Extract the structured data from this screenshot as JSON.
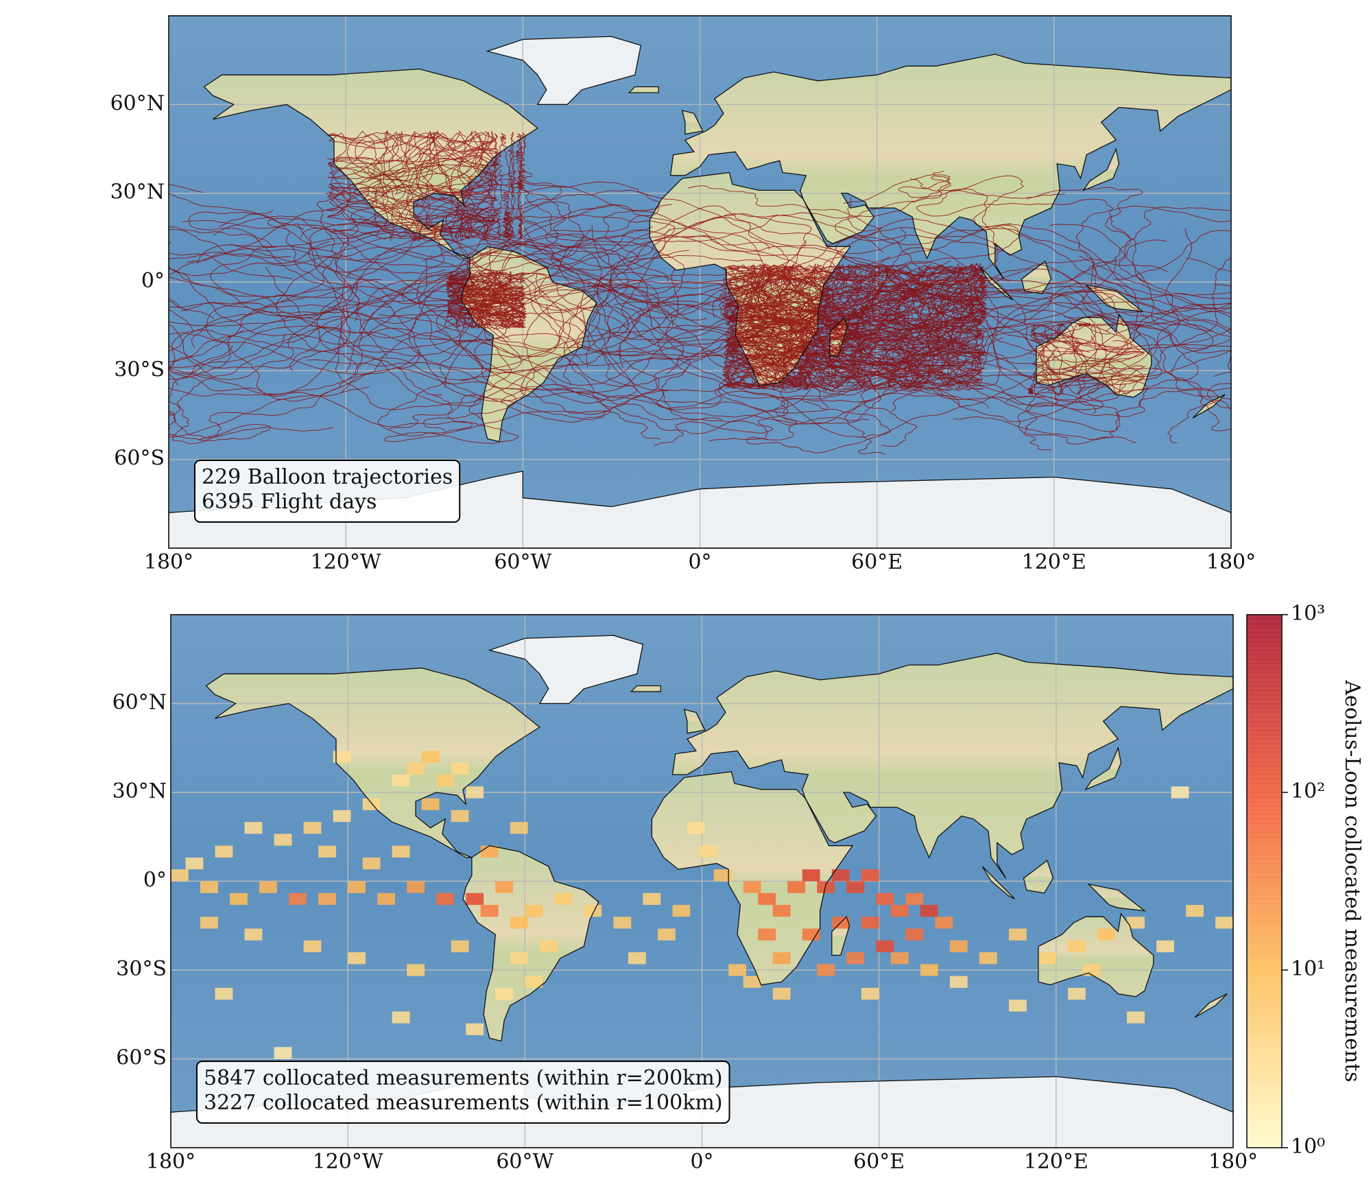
{
  "chart_data": [
    {
      "type": "trajectory-map",
      "xlim": [
        -180,
        180
      ],
      "ylim": [
        -90,
        90
      ],
      "xticks": [
        {
          "value": -180,
          "label": "180°"
        },
        {
          "value": -120,
          "label": "120°W"
        },
        {
          "value": -60,
          "label": "60°W"
        },
        {
          "value": 0,
          "label": "0°"
        },
        {
          "value": 60,
          "label": "60°E"
        },
        {
          "value": 120,
          "label": "120°E"
        },
        {
          "value": 180,
          "label": "180°"
        }
      ],
      "yticks": [
        {
          "value": 60,
          "label": "60°N"
        },
        {
          "value": 30,
          "label": "30°N"
        },
        {
          "value": 0,
          "label": "0°"
        },
        {
          "value": -30,
          "label": "30°S"
        },
        {
          "value": -60,
          "label": "60°S"
        }
      ],
      "grid": true,
      "color": "#8b0000",
      "annotation": [
        "229 Balloon trajectories",
        "6395 Flight days"
      ]
    },
    {
      "type": "heatmap",
      "xlim": [
        -180,
        180
      ],
      "ylim": [
        -90,
        90
      ],
      "xticks": [
        {
          "value": -180,
          "label": "180°"
        },
        {
          "value": -120,
          "label": "120°W"
        },
        {
          "value": -60,
          "label": "60°W"
        },
        {
          "value": 0,
          "label": "0°"
        },
        {
          "value": 60,
          "label": "60°E"
        },
        {
          "value": 120,
          "label": "120°E"
        },
        {
          "value": 180,
          "label": "180°"
        }
      ],
      "yticks": [
        {
          "value": 60,
          "label": "60°N"
        },
        {
          "value": 30,
          "label": "30°N"
        },
        {
          "value": 0,
          "label": "0°"
        },
        {
          "value": -30,
          "label": "30°S"
        },
        {
          "value": -60,
          "label": "60°S"
        }
      ],
      "grid": true,
      "annotation": [
        "5847 collocated measurements (within r=200km)",
        "3227 collocated measurements (within r=100km)"
      ],
      "x": [
        -92,
        -97,
        -82,
        -87,
        -102,
        -77,
        -92,
        -82,
        -112,
        -122,
        -132,
        -142,
        -152,
        -162,
        -172,
        -177,
        -167,
        -157,
        -147,
        -137,
        -127,
        -117,
        -107,
        -97,
        -87,
        -77,
        -72,
        -67,
        -62,
        -57,
        -47,
        -52,
        -62,
        -67,
        -57,
        -37,
        -27,
        -17,
        -7,
        -12,
        -22,
        -132,
        -152,
        -167,
        -117,
        -97,
        -82,
        -72,
        -62,
        -102,
        -112,
        -127,
        7,
        17,
        22,
        27,
        22,
        27,
        32,
        37,
        42,
        47,
        52,
        57,
        62,
        67,
        72,
        77,
        82,
        72,
        62,
        52,
        42,
        37,
        47,
        57,
        67,
        77,
        87,
        97,
        107,
        117,
        127,
        137,
        132,
        147,
        157,
        167,
        177,
        17,
        2,
        -2,
        12,
        27,
        57,
        87,
        107,
        127,
        147,
        -102,
        -142,
        -162,
        -122,
        162,
        -77
      ],
      "y": [
        42,
        38,
        38,
        34,
        34,
        30,
        26,
        22,
        26,
        22,
        18,
        14,
        18,
        10,
        6,
        2,
        -2,
        -6,
        -2,
        -6,
        -6,
        -2,
        -6,
        -2,
        -6,
        -6,
        -10,
        -2,
        -14,
        -10,
        -6,
        -22,
        -26,
        -38,
        -34,
        -10,
        -14,
        -6,
        -10,
        -18,
        -26,
        -22,
        -18,
        -14,
        -26,
        -30,
        -22,
        10,
        18,
        10,
        6,
        10,
        2,
        -2,
        -6,
        -10,
        -18,
        -26,
        -2,
        2,
        -2,
        2,
        -2,
        2,
        -6,
        -10,
        -6,
        -10,
        -14,
        -18,
        -22,
        -26,
        -30,
        -18,
        -14,
        -14,
        -26,
        -30,
        -22,
        -26,
        -18,
        -26,
        -22,
        -18,
        -30,
        -14,
        -22,
        -10,
        -14,
        -34,
        10,
        18,
        -30,
        -38,
        -38,
        -34,
        -42,
        -38,
        -46,
        -46,
        -58,
        -38,
        42,
        30,
        -50
      ],
      "values": [
        8,
        5,
        4,
        6,
        3,
        3,
        10,
        6,
        4,
        3,
        5,
        4,
        3,
        4,
        3,
        5,
        8,
        10,
        12,
        40,
        15,
        12,
        14,
        20,
        60,
        150,
        40,
        20,
        10,
        8,
        6,
        5,
        4,
        3,
        4,
        5,
        6,
        5,
        8,
        6,
        4,
        5,
        4,
        6,
        4,
        5,
        6,
        15,
        6,
        5,
        6,
        5,
        8,
        30,
        60,
        50,
        40,
        20,
        60,
        200,
        120,
        180,
        150,
        100,
        80,
        60,
        40,
        200,
        30,
        60,
        150,
        40,
        30,
        50,
        60,
        80,
        20,
        10,
        15,
        8,
        6,
        5,
        6,
        8,
        5,
        4,
        3,
        5,
        4,
        6,
        4,
        3,
        8,
        5,
        4,
        3,
        3,
        3,
        3,
        3,
        2,
        3,
        3,
        2,
        3
      ],
      "colorbar": {
        "label": "Aeolus-Loon collocated measurements",
        "scale": "log",
        "lim": [
          1,
          1000
        ],
        "ticks": [
          {
            "value": 1,
            "label": "10⁰"
          },
          {
            "value": 10,
            "label": "10¹"
          },
          {
            "value": 100,
            "label": "10²"
          },
          {
            "value": 1000,
            "label": "10³"
          }
        ]
      }
    }
  ]
}
